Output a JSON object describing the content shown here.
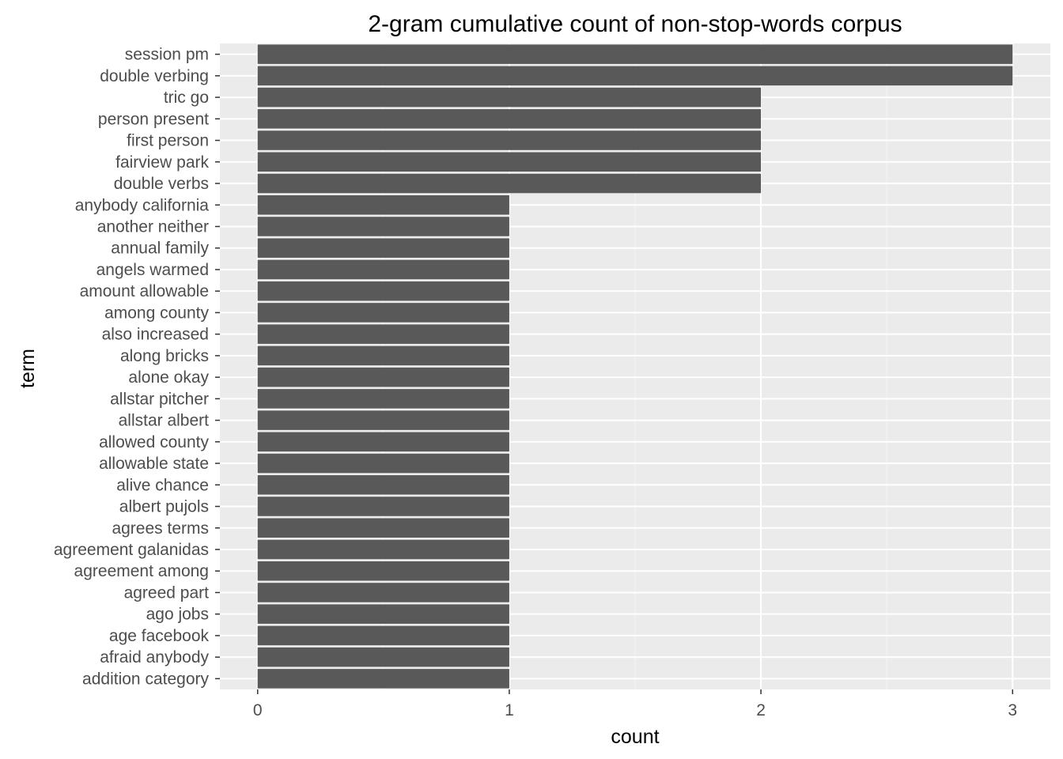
{
  "chart_data": {
    "type": "bar",
    "orientation": "horizontal",
    "title": "2-gram cumulative count of non-stop-words corpus",
    "xlabel": "count",
    "ylabel": "term",
    "xlim": [
      -0.15,
      3.15
    ],
    "xticks": [
      0,
      1,
      2,
      3
    ],
    "grid": true,
    "categories": [
      "session pm",
      "double verbing",
      "tric go",
      "person present",
      "first person",
      "fairview park",
      "double verbs",
      "anybody california",
      "another neither",
      "annual family",
      "angels warmed",
      "amount allowable",
      "among county",
      "also increased",
      "along bricks",
      "alone okay",
      "allstar pitcher",
      "allstar albert",
      "allowed county",
      "allowable state",
      "alive chance",
      "albert pujols",
      "agrees terms",
      "agreement galanidas",
      "agreement among",
      "agreed part",
      "ago jobs",
      "age facebook",
      "afraid anybody",
      "addition category"
    ],
    "values": [
      3,
      3,
      2,
      2,
      2,
      2,
      2,
      1,
      1,
      1,
      1,
      1,
      1,
      1,
      1,
      1,
      1,
      1,
      1,
      1,
      1,
      1,
      1,
      1,
      1,
      1,
      1,
      1,
      1,
      1
    ],
    "colors": {
      "bar": "#595959",
      "panel": "#ebebeb",
      "grid_major": "#ffffff",
      "grid_minor": "#f5f5f5",
      "tick_text": "#4d4d4d",
      "tick_mark": "#333333"
    }
  }
}
